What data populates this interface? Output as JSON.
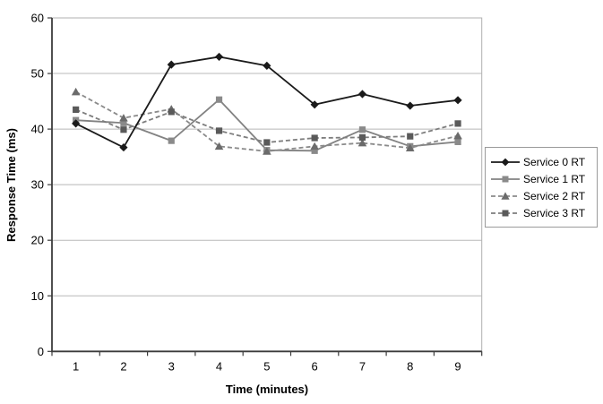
{
  "chart_data": {
    "type": "line",
    "title": "",
    "xlabel": "Time (minutes)",
    "ylabel": "Response Time (ms)",
    "x": [
      1,
      2,
      3,
      4,
      5,
      6,
      7,
      8,
      9
    ],
    "ylim": [
      0,
      60
    ],
    "ytick_interval": 10,
    "grid": true,
    "legend_position": "right",
    "series": [
      {
        "name": "Service 0 RT",
        "values": [
          41.0,
          36.7,
          51.6,
          53.0,
          51.4,
          44.4,
          46.3,
          44.2,
          45.2
        ],
        "line_color": "#1a1a1a",
        "line_style": "solid",
        "marker": "diamond",
        "marker_color": "#1a1a1a"
      },
      {
        "name": "Service 1 RT",
        "values": [
          41.6,
          41.1,
          37.9,
          45.3,
          36.2,
          36.1,
          39.9,
          36.9,
          37.7
        ],
        "line_color": "#828282",
        "line_style": "solid",
        "marker": "square",
        "marker_color": "#8a8a8a"
      },
      {
        "name": "Service 2 RT",
        "values": [
          46.7,
          42.0,
          43.6,
          36.9,
          36.0,
          36.9,
          37.5,
          36.6,
          38.8
        ],
        "line_color": "#8a8a8a",
        "line_style": "dashed",
        "marker": "triangle",
        "marker_color": "#6b6b6b"
      },
      {
        "name": "Service 3 RT",
        "values": [
          43.5,
          39.9,
          43.1,
          39.7,
          37.6,
          38.4,
          38.5,
          38.7,
          41.0
        ],
        "line_color": "#7d7d7d",
        "line_style": "dashed",
        "marker": "square",
        "marker_color": "#5a5a5a"
      }
    ],
    "colors": {
      "gridline": "#b8b8b8",
      "plot_border": "#b0b0b0",
      "axis": "#3c3c3c",
      "background": "#ffffff"
    }
  }
}
